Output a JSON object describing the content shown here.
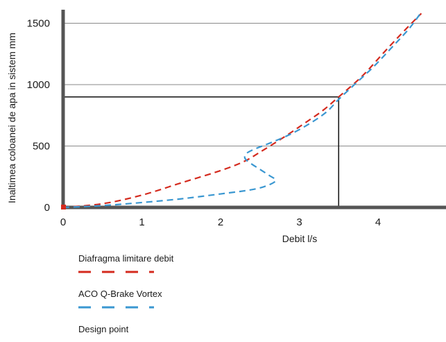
{
  "chart_data": {
    "type": "line",
    "title": "",
    "xlabel": "Debit l/s",
    "ylabel": "Inaltimea coloanei de apa in sistem mm",
    "xlim": [
      0,
      4.75
    ],
    "ylim": [
      0,
      1620
    ],
    "x_ticks": [
      0,
      1,
      2,
      3,
      4
    ],
    "y_ticks": [
      0,
      500,
      1000,
      1500
    ],
    "x_tick_labels": [
      "0",
      "1",
      "2",
      "3",
      "4"
    ],
    "y_tick_labels": [
      "0",
      "500",
      "1000",
      "1500"
    ],
    "grid": "horizontal",
    "legend_position": "below",
    "series": [
      {
        "name": "Diafragma limitare debit",
        "color": "#d42a1e",
        "style": "dashed",
        "points": [
          [
            0,
            0
          ],
          [
            0.5,
            30
          ],
          [
            1.0,
            100
          ],
          [
            1.5,
            200
          ],
          [
            2.0,
            300
          ],
          [
            2.3,
            375
          ],
          [
            2.5,
            450
          ],
          [
            2.8,
            570
          ],
          [
            3.1,
            700
          ],
          [
            3.3,
            790
          ],
          [
            3.5,
            900
          ],
          [
            3.8,
            1070
          ],
          [
            4.1,
            1280
          ],
          [
            4.35,
            1450
          ],
          [
            4.55,
            1580
          ]
        ]
      },
      {
        "name": "ACO Q-Brake Vortex",
        "color": "#3a97d1",
        "style": "dashed",
        "points": [
          [
            0,
            0
          ],
          [
            0.5,
            15
          ],
          [
            1.0,
            40
          ],
          [
            1.5,
            70
          ],
          [
            2.0,
            110
          ],
          [
            2.4,
            145
          ],
          [
            2.6,
            180
          ],
          [
            2.7,
            220
          ],
          [
            2.62,
            260
          ],
          [
            2.5,
            310
          ],
          [
            2.38,
            360
          ],
          [
            2.31,
            400
          ],
          [
            2.33,
            440
          ],
          [
            2.45,
            480
          ],
          [
            2.65,
            530
          ],
          [
            2.9,
            600
          ],
          [
            3.15,
            690
          ],
          [
            3.35,
            780
          ],
          [
            3.5,
            880
          ],
          [
            3.7,
            1000
          ],
          [
            3.95,
            1150
          ],
          [
            4.2,
            1320
          ],
          [
            4.4,
            1460
          ],
          [
            4.55,
            1590
          ]
        ]
      }
    ],
    "design_point": {
      "name": "Design point",
      "x": 3.5,
      "y": 900,
      "color": "#1a1a1a"
    }
  }
}
